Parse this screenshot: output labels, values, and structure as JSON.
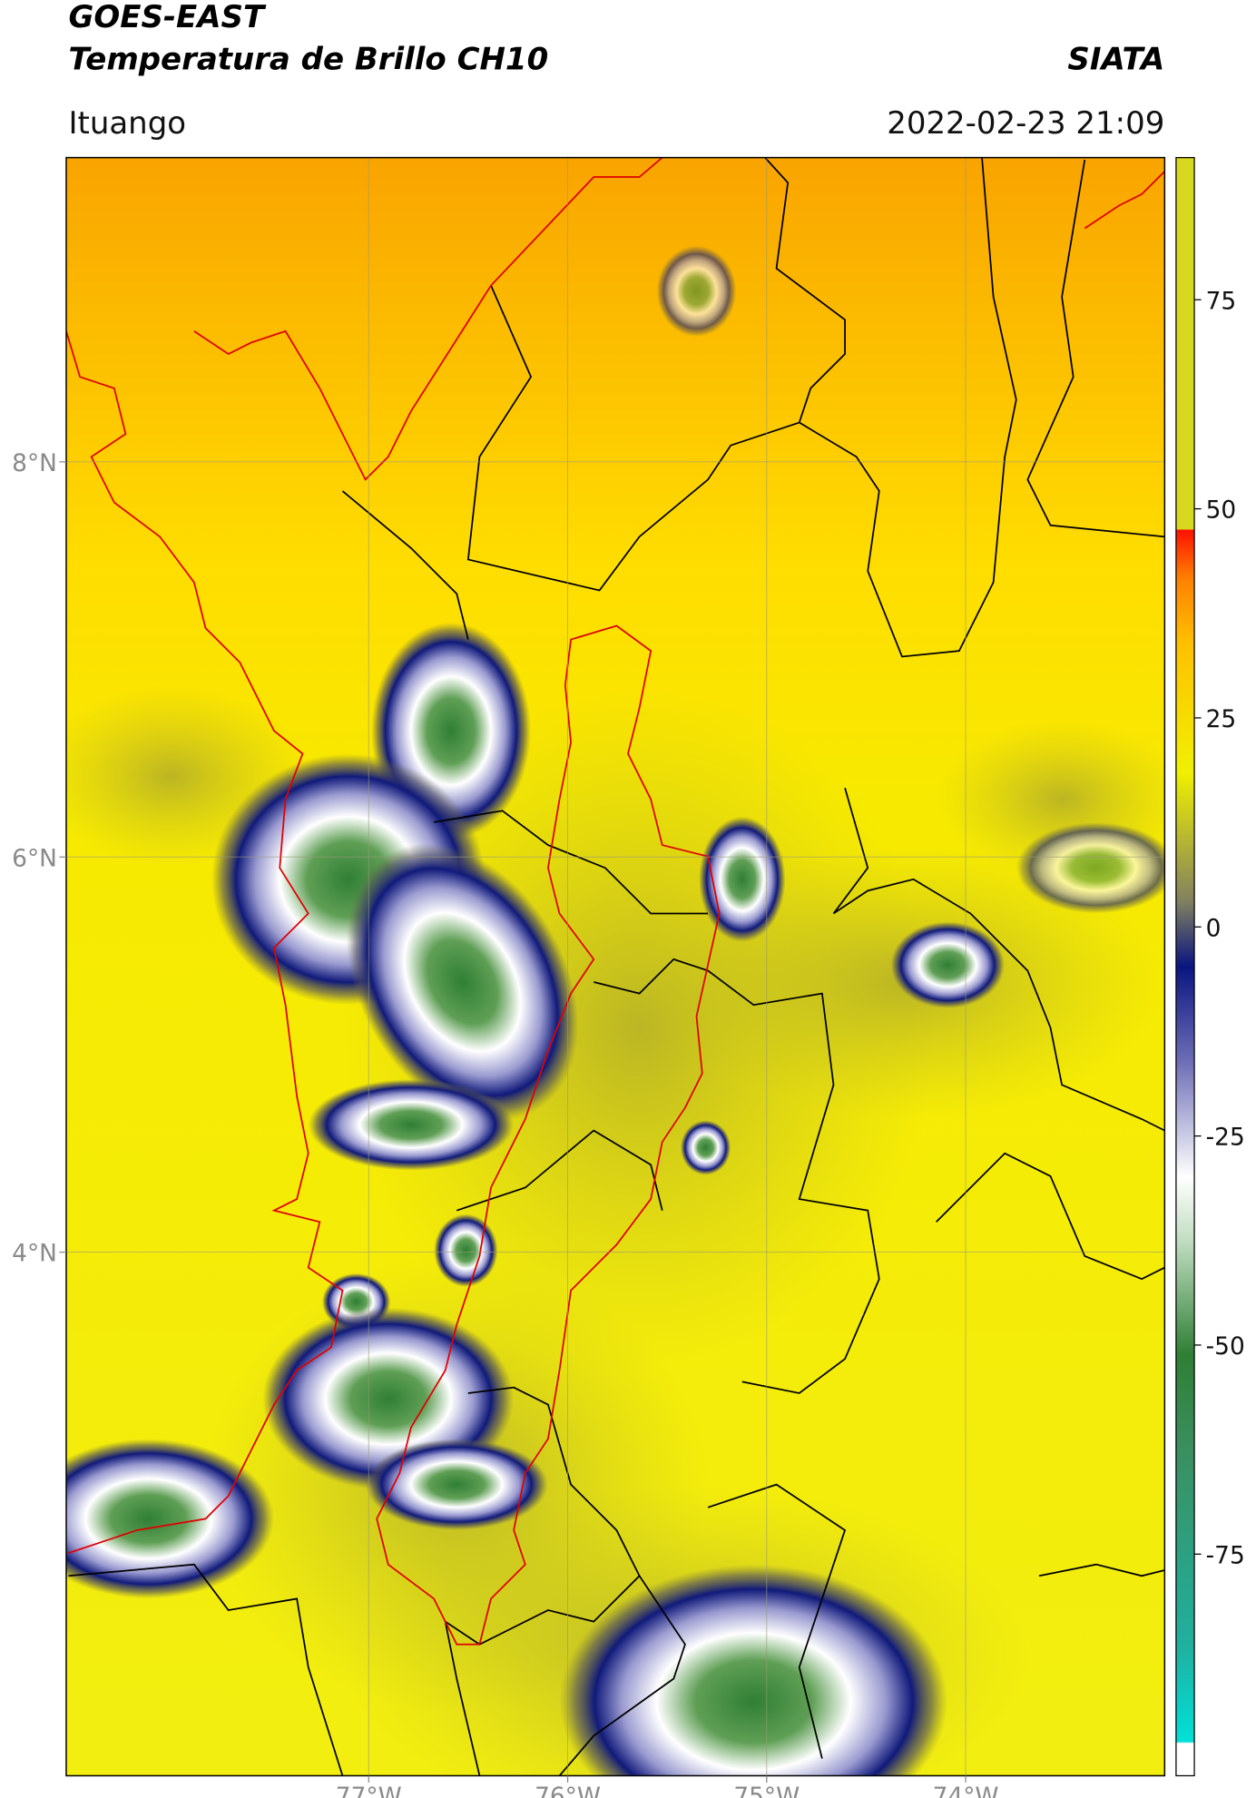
{
  "header": {
    "title": "GOES-EAST",
    "subtitle": "Temperatura de Brillo CH10",
    "source": "SIATA",
    "location": "Ituango",
    "datetime": "2022-02-23 21:09"
  },
  "map": {
    "xlim": [
      -78.52,
      -73.0
    ],
    "ylim": [
      1.35,
      9.54
    ],
    "xticks": [
      {
        "value": -77,
        "label": "77°W"
      },
      {
        "value": -76,
        "label": "76°W"
      },
      {
        "value": -75,
        "label": "75°W"
      },
      {
        "value": -74,
        "label": "74°W"
      }
    ],
    "yticks": [
      {
        "value": 8,
        "label": "8°N"
      },
      {
        "value": 6,
        "label": "6°N"
      },
      {
        "value": 4,
        "label": "4°N"
      }
    ],
    "grid": true
  },
  "colorbar": {
    "lim": [
      -101.5,
      92
    ],
    "ticks": [
      75,
      50,
      25,
      0,
      -25,
      -50,
      -75
    ]
  }
}
